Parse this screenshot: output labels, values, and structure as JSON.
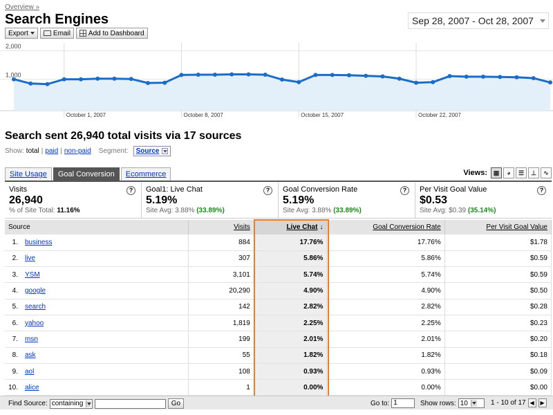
{
  "breadcrumb": "Overview »",
  "page_title": "Search Engines",
  "date_range": "Sep 28, 2007 - Oct 28, 2007",
  "toolbar": {
    "export": "Export",
    "email": "Email",
    "add_dashboard": "Add to Dashboard"
  },
  "chart_data": {
    "type": "area",
    "y_ticks": [
      "2,000",
      "1,000"
    ],
    "x_tick_labels": [
      "October 1, 2007",
      "October 8, 2007",
      "October 15, 2007",
      "October 22, 2007"
    ],
    "ylim": [
      0,
      2000
    ],
    "values": [
      1000,
      850,
      830,
      1000,
      1000,
      1020,
      1020,
      1010,
      870,
      880,
      1150,
      1160,
      1160,
      1170,
      1170,
      1160,
      990,
      900,
      1150,
      1150,
      1140,
      1120,
      1100,
      1020,
      880,
      900,
      1110,
      1090,
      1090,
      1080,
      1070,
      1040,
      890
    ],
    "line_color": "#1a6cc7",
    "fill_color": "#e3eff9",
    "grid": true
  },
  "summary_title": "Search sent 26,940 total visits via 17 sources",
  "show": {
    "label": "Show:",
    "total": "total",
    "paid": "paid",
    "nonpaid": "non-paid",
    "segment_label": "Segment:",
    "segment_value": "Source"
  },
  "tabs": [
    "Site Usage",
    "Goal Conversion",
    "Ecommerce"
  ],
  "views_label": "Views:",
  "metrics": [
    {
      "name": "Visits",
      "value": "26,940",
      "sub_label": "% of Site Total:",
      "sub_value": "11.16%",
      "sub_pct": ""
    },
    {
      "name": "Goal1: Live Chat",
      "value": "5.19%",
      "sub_label": "Site Avg:",
      "sub_value": "3.88%",
      "sub_pct": "(33.89%)"
    },
    {
      "name": "Goal Conversion Rate",
      "value": "5.19%",
      "sub_label": "Site Avg:",
      "sub_value": "3.88%",
      "sub_pct": "(33.89%)"
    },
    {
      "name": "Per Visit Goal Value",
      "value": "$0.53",
      "sub_label": "Site Avg:",
      "sub_value": "$0.39",
      "sub_pct": "(35.14%)"
    }
  ],
  "table": {
    "headers": [
      "Source",
      "Visits",
      "Live Chat",
      "Goal Conversion Rate",
      "Per Visit Goal Value"
    ],
    "rows": [
      {
        "n": "1.",
        "source": "business",
        "visits": "884",
        "chat": "17.76%",
        "rate": "17.76%",
        "value": "$1.78"
      },
      {
        "n": "2.",
        "source": "live",
        "visits": "307",
        "chat": "5.86%",
        "rate": "5.86%",
        "value": "$0.59"
      },
      {
        "n": "3.",
        "source": "YSM",
        "visits": "3,101",
        "chat": "5.74%",
        "rate": "5.74%",
        "value": "$0.59"
      },
      {
        "n": "4.",
        "source": "google",
        "visits": "20,290",
        "chat": "4.90%",
        "rate": "4.90%",
        "value": "$0.50"
      },
      {
        "n": "5.",
        "source": "search",
        "visits": "142",
        "chat": "2.82%",
        "rate": "2.82%",
        "value": "$0.28"
      },
      {
        "n": "6.",
        "source": "yahoo",
        "visits": "1,819",
        "chat": "2.25%",
        "rate": "2.25%",
        "value": "$0.23"
      },
      {
        "n": "7.",
        "source": "msn",
        "visits": "199",
        "chat": "2.01%",
        "rate": "2.01%",
        "value": "$0.20"
      },
      {
        "n": "8.",
        "source": "ask",
        "visits": "55",
        "chat": "1.82%",
        "rate": "1.82%",
        "value": "$0.18"
      },
      {
        "n": "9.",
        "source": "aol",
        "visits": "108",
        "chat": "0.93%",
        "rate": "0.93%",
        "value": "$0.09"
      },
      {
        "n": "10.",
        "source": "alice",
        "visits": "1",
        "chat": "0.00%",
        "rate": "0.00%",
        "value": "$0.00"
      }
    ]
  },
  "footer": {
    "find_label": "Find Source:",
    "find_mode": "containing",
    "go": "Go",
    "goto_label": "Go to:",
    "goto_value": "1",
    "rows_label": "Show rows:",
    "rows_value": "10",
    "range": "1 - 10 of 17"
  },
  "icons": {
    "help": "help-icon",
    "views": [
      "table-view-icon",
      "pie-view-icon",
      "bar-view-icon",
      "comparison-view-icon",
      "sparkline-view-icon"
    ]
  }
}
